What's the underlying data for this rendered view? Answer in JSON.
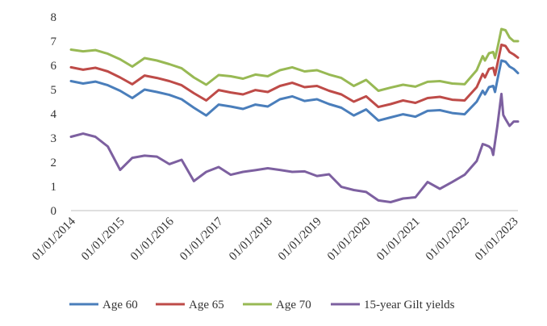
{
  "chart_data": {
    "type": "line",
    "title": "",
    "xlabel": "",
    "ylabel": "",
    "ylim": [
      0,
      8
    ],
    "grid": false,
    "legend_position": "bottom",
    "yticks": [
      0,
      1,
      2,
      3,
      4,
      5,
      6,
      7,
      8
    ],
    "xticks": [
      {
        "date": "2014-01-01",
        "label": "01/01/2014"
      },
      {
        "date": "2015-01-01",
        "label": "01/01/2015"
      },
      {
        "date": "2016-01-01",
        "label": "01/01/2016"
      },
      {
        "date": "2017-01-01",
        "label": "01/01/2017"
      },
      {
        "date": "2018-01-01",
        "label": "01/01/2018"
      },
      {
        "date": "2019-01-01",
        "label": "01/01/2019"
      },
      {
        "date": "2020-01-01",
        "label": "01/01/2020"
      },
      {
        "date": "2021-01-01",
        "label": "01/01/2021"
      },
      {
        "date": "2022-01-01",
        "label": "01/01/2022"
      },
      {
        "date": "2023-01-01",
        "label": "01/01/2023"
      }
    ],
    "series": [
      {
        "name": "Age 60",
        "color": "#4a7ebb",
        "points": [
          [
            "2014-01-01",
            5.35
          ],
          [
            "2014-04-01",
            5.25
          ],
          [
            "2014-07-01",
            5.33
          ],
          [
            "2014-10-01",
            5.18
          ],
          [
            "2015-01-01",
            4.95
          ],
          [
            "2015-04-01",
            4.65
          ],
          [
            "2015-07-01",
            5.0
          ],
          [
            "2015-10-01",
            4.9
          ],
          [
            "2016-01-01",
            4.78
          ],
          [
            "2016-04-01",
            4.6
          ],
          [
            "2016-07-01",
            4.25
          ],
          [
            "2016-10-01",
            3.93
          ],
          [
            "2017-01-01",
            4.38
          ],
          [
            "2017-04-01",
            4.3
          ],
          [
            "2017-07-01",
            4.2
          ],
          [
            "2017-10-01",
            4.38
          ],
          [
            "2018-01-01",
            4.3
          ],
          [
            "2018-04-01",
            4.6
          ],
          [
            "2018-07-01",
            4.72
          ],
          [
            "2018-10-01",
            4.53
          ],
          [
            "2019-01-01",
            4.6
          ],
          [
            "2019-04-01",
            4.4
          ],
          [
            "2019-07-01",
            4.25
          ],
          [
            "2019-10-01",
            3.93
          ],
          [
            "2020-01-01",
            4.18
          ],
          [
            "2020-04-01",
            3.72
          ],
          [
            "2020-07-01",
            3.85
          ],
          [
            "2020-10-01",
            3.98
          ],
          [
            "2021-01-01",
            3.88
          ],
          [
            "2021-04-01",
            4.12
          ],
          [
            "2021-07-01",
            4.15
          ],
          [
            "2021-10-01",
            4.03
          ],
          [
            "2022-01-01",
            3.98
          ],
          [
            "2022-04-01",
            4.5
          ],
          [
            "2022-05-15",
            4.95
          ],
          [
            "2022-06-01",
            4.8
          ],
          [
            "2022-07-01",
            5.1
          ],
          [
            "2022-08-01",
            5.15
          ],
          [
            "2022-08-15",
            4.9
          ],
          [
            "2022-09-01",
            5.4
          ],
          [
            "2022-10-01",
            6.2
          ],
          [
            "2022-11-01",
            6.15
          ],
          [
            "2022-12-01",
            5.95
          ],
          [
            "2023-01-01",
            5.85
          ],
          [
            "2023-02-01",
            5.68
          ]
        ]
      },
      {
        "name": "Age 65",
        "color": "#be4b48",
        "points": [
          [
            "2014-01-01",
            5.92
          ],
          [
            "2014-04-01",
            5.82
          ],
          [
            "2014-07-01",
            5.9
          ],
          [
            "2014-10-01",
            5.75
          ],
          [
            "2015-01-01",
            5.5
          ],
          [
            "2015-04-01",
            5.22
          ],
          [
            "2015-07-01",
            5.58
          ],
          [
            "2015-10-01",
            5.48
          ],
          [
            "2016-01-01",
            5.35
          ],
          [
            "2016-04-01",
            5.18
          ],
          [
            "2016-07-01",
            4.85
          ],
          [
            "2016-10-01",
            4.55
          ],
          [
            "2017-01-01",
            4.98
          ],
          [
            "2017-04-01",
            4.88
          ],
          [
            "2017-07-01",
            4.8
          ],
          [
            "2017-10-01",
            4.98
          ],
          [
            "2018-01-01",
            4.9
          ],
          [
            "2018-04-01",
            5.15
          ],
          [
            "2018-07-01",
            5.28
          ],
          [
            "2018-10-01",
            5.1
          ],
          [
            "2019-01-01",
            5.15
          ],
          [
            "2019-04-01",
            4.95
          ],
          [
            "2019-07-01",
            4.8
          ],
          [
            "2019-10-01",
            4.5
          ],
          [
            "2020-01-01",
            4.72
          ],
          [
            "2020-04-01",
            4.28
          ],
          [
            "2020-07-01",
            4.4
          ],
          [
            "2020-10-01",
            4.55
          ],
          [
            "2021-01-01",
            4.45
          ],
          [
            "2021-04-01",
            4.65
          ],
          [
            "2021-07-01",
            4.7
          ],
          [
            "2021-10-01",
            4.58
          ],
          [
            "2022-01-01",
            4.55
          ],
          [
            "2022-04-01",
            5.1
          ],
          [
            "2022-05-15",
            5.65
          ],
          [
            "2022-06-01",
            5.5
          ],
          [
            "2022-07-01",
            5.85
          ],
          [
            "2022-08-01",
            5.9
          ],
          [
            "2022-08-15",
            5.6
          ],
          [
            "2022-09-01",
            6.05
          ],
          [
            "2022-10-01",
            6.85
          ],
          [
            "2022-11-01",
            6.8
          ],
          [
            "2022-12-01",
            6.55
          ],
          [
            "2023-01-01",
            6.45
          ],
          [
            "2023-02-01",
            6.32
          ]
        ]
      },
      {
        "name": "Age 70",
        "color": "#98b954",
        "points": [
          [
            "2014-01-01",
            6.65
          ],
          [
            "2014-04-01",
            6.58
          ],
          [
            "2014-07-01",
            6.63
          ],
          [
            "2014-10-01",
            6.48
          ],
          [
            "2015-01-01",
            6.25
          ],
          [
            "2015-04-01",
            5.95
          ],
          [
            "2015-07-01",
            6.3
          ],
          [
            "2015-10-01",
            6.2
          ],
          [
            "2016-01-01",
            6.05
          ],
          [
            "2016-04-01",
            5.88
          ],
          [
            "2016-07-01",
            5.5
          ],
          [
            "2016-10-01",
            5.2
          ],
          [
            "2017-01-01",
            5.6
          ],
          [
            "2017-04-01",
            5.55
          ],
          [
            "2017-07-01",
            5.45
          ],
          [
            "2017-10-01",
            5.62
          ],
          [
            "2018-01-01",
            5.55
          ],
          [
            "2018-04-01",
            5.8
          ],
          [
            "2018-07-01",
            5.92
          ],
          [
            "2018-10-01",
            5.75
          ],
          [
            "2019-01-01",
            5.8
          ],
          [
            "2019-04-01",
            5.62
          ],
          [
            "2019-07-01",
            5.48
          ],
          [
            "2019-10-01",
            5.15
          ],
          [
            "2020-01-01",
            5.4
          ],
          [
            "2020-04-01",
            4.95
          ],
          [
            "2020-07-01",
            5.08
          ],
          [
            "2020-10-01",
            5.2
          ],
          [
            "2021-01-01",
            5.12
          ],
          [
            "2021-04-01",
            5.32
          ],
          [
            "2021-07-01",
            5.35
          ],
          [
            "2021-10-01",
            5.25
          ],
          [
            "2022-01-01",
            5.22
          ],
          [
            "2022-04-01",
            5.8
          ],
          [
            "2022-05-15",
            6.38
          ],
          [
            "2022-06-01",
            6.2
          ],
          [
            "2022-07-01",
            6.5
          ],
          [
            "2022-08-01",
            6.55
          ],
          [
            "2022-08-15",
            6.3
          ],
          [
            "2022-09-01",
            6.7
          ],
          [
            "2022-10-01",
            7.5
          ],
          [
            "2022-11-01",
            7.45
          ],
          [
            "2022-12-01",
            7.15
          ],
          [
            "2023-01-01",
            7.0
          ],
          [
            "2023-02-01",
            7.0
          ]
        ]
      },
      {
        "name": "15-year Gilt yields",
        "color": "#7d60a0",
        "points": [
          [
            "2014-01-01",
            3.05
          ],
          [
            "2014-04-01",
            3.18
          ],
          [
            "2014-07-01",
            3.05
          ],
          [
            "2014-10-01",
            2.65
          ],
          [
            "2015-01-01",
            1.68
          ],
          [
            "2015-04-01",
            2.18
          ],
          [
            "2015-07-01",
            2.27
          ],
          [
            "2015-10-01",
            2.23
          ],
          [
            "2016-01-01",
            1.92
          ],
          [
            "2016-04-01",
            2.1
          ],
          [
            "2016-07-01",
            1.22
          ],
          [
            "2016-10-01",
            1.6
          ],
          [
            "2017-01-01",
            1.8
          ],
          [
            "2017-04-01",
            1.48
          ],
          [
            "2017-07-01",
            1.6
          ],
          [
            "2017-10-01",
            1.67
          ],
          [
            "2018-01-01",
            1.75
          ],
          [
            "2018-04-01",
            1.68
          ],
          [
            "2018-07-01",
            1.6
          ],
          [
            "2018-10-01",
            1.62
          ],
          [
            "2019-01-01",
            1.43
          ],
          [
            "2019-04-01",
            1.5
          ],
          [
            "2019-07-01",
            0.98
          ],
          [
            "2019-10-01",
            0.85
          ],
          [
            "2020-01-01",
            0.77
          ],
          [
            "2020-04-01",
            0.42
          ],
          [
            "2020-07-01",
            0.35
          ],
          [
            "2020-10-01",
            0.5
          ],
          [
            "2021-01-01",
            0.55
          ],
          [
            "2021-04-01",
            1.18
          ],
          [
            "2021-07-01",
            0.9
          ],
          [
            "2021-10-01",
            1.18
          ],
          [
            "2022-01-01",
            1.48
          ],
          [
            "2022-04-01",
            2.05
          ],
          [
            "2022-05-15",
            2.75
          ],
          [
            "2022-06-01",
            2.72
          ],
          [
            "2022-07-01",
            2.65
          ],
          [
            "2022-07-20",
            2.55
          ],
          [
            "2022-08-01",
            2.3
          ],
          [
            "2022-09-01",
            3.5
          ],
          [
            "2022-10-01",
            4.82
          ],
          [
            "2022-10-15",
            3.95
          ],
          [
            "2022-11-01",
            3.78
          ],
          [
            "2022-12-01",
            3.5
          ],
          [
            "2023-01-01",
            3.68
          ],
          [
            "2023-02-01",
            3.68
          ]
        ]
      }
    ]
  }
}
